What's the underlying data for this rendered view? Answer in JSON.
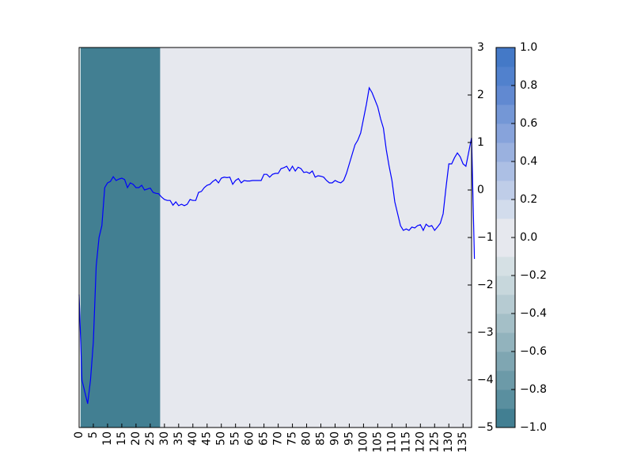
{
  "chart_data": {
    "type": "line",
    "title": "",
    "xlabel": "",
    "ylabel": "",
    "xlim": [
      0,
      138
    ],
    "ylim": [
      -5,
      3
    ],
    "grid": false,
    "legend": "none",
    "x_tick_values": [
      0,
      5,
      10,
      15,
      20,
      25,
      30,
      35,
      40,
      45,
      50,
      55,
      60,
      65,
      70,
      75,
      80,
      85,
      90,
      95,
      100,
      105,
      110,
      115,
      120,
      125,
      130,
      135
    ],
    "x_tick_labels": [
      "0",
      "5",
      "10",
      "15",
      "20",
      "25",
      "30",
      "35",
      "40",
      "45",
      "50",
      "55",
      "60",
      "65",
      "70",
      "75",
      "80",
      "85",
      "90",
      "95",
      "100",
      "105",
      "110",
      "115",
      "120",
      "125",
      "130",
      "135"
    ],
    "y_tick_values": [
      -5,
      -4,
      -3,
      -2,
      -1,
      0,
      1,
      2,
      3
    ],
    "y_tick_labels": [
      "−5",
      "−4",
      "−3",
      "−2",
      "−1",
      "0",
      "1",
      "2",
      "3"
    ],
    "line_color": "#0000ff",
    "background_bands": [
      {
        "x0": 0.5,
        "x1": 28.5,
        "value": -1.0,
        "color": "#427f92"
      },
      {
        "x0": 28.5,
        "x1": 138,
        "value": 0.0,
        "color": "#e6e8ee"
      }
    ],
    "series": [
      {
        "values": [
          -2.2,
          -4.0,
          -4.25,
          -4.5,
          -4.0,
          -3.2,
          -1.6,
          -1.0,
          -0.75,
          0.05,
          0.15,
          0.18,
          0.28,
          0.2,
          0.23,
          0.25,
          0.22,
          0.05,
          0.15,
          0.12,
          0.05,
          0.05,
          0.1,
          0.0,
          0.02,
          0.04,
          -0.05,
          -0.07,
          -0.08,
          -0.15,
          -0.2,
          -0.22,
          -0.22,
          -0.32,
          -0.25,
          -0.33,
          -0.3,
          -0.33,
          -0.3,
          -0.2,
          -0.22,
          -0.22,
          -0.05,
          -0.03,
          0.05,
          0.1,
          0.12,
          0.18,
          0.22,
          0.15,
          0.25,
          0.27,
          0.26,
          0.27,
          0.12,
          0.2,
          0.24,
          0.15,
          0.2,
          0.19,
          0.19,
          0.2,
          0.2,
          0.2,
          0.2,
          0.33,
          0.33,
          0.27,
          0.33,
          0.35,
          0.35,
          0.45,
          0.47,
          0.5,
          0.4,
          0.5,
          0.4,
          0.48,
          0.45,
          0.37,
          0.38,
          0.35,
          0.4,
          0.27,
          0.3,
          0.29,
          0.27,
          0.2,
          0.15,
          0.15,
          0.2,
          0.17,
          0.15,
          0.2,
          0.35,
          0.55,
          0.75,
          0.95,
          1.05,
          1.2,
          1.5,
          1.8,
          2.15,
          2.05,
          1.9,
          1.75,
          1.5,
          1.3,
          0.85,
          0.5,
          0.2,
          -0.25,
          -0.5,
          -0.75,
          -0.85,
          -0.82,
          -0.85,
          -0.78,
          -0.8,
          -0.75,
          -0.73,
          -0.85,
          -0.72,
          -0.77,
          -0.75,
          -0.85,
          -0.78,
          -0.7,
          -0.5,
          0.05,
          0.55,
          0.55,
          0.68,
          0.78,
          0.7,
          0.55,
          0.5,
          0.8,
          1.1,
          -1.45
        ]
      }
    ],
    "colorbar": {
      "range": [
        -1.0,
        1.0
      ],
      "levels": [
        -1.0,
        -0.9,
        -0.8,
        -0.7,
        -0.6,
        -0.5,
        -0.4,
        -0.3,
        -0.2,
        -0.1,
        0.0,
        0.1,
        0.2,
        0.3,
        0.4,
        0.5,
        0.6,
        0.7,
        0.8,
        0.9,
        1.0
      ],
      "colors": [
        "#427f92",
        "#5a8f9f",
        "#6c9aa8",
        "#7fa6b2",
        "#92b3bd",
        "#a4bfc7",
        "#b6cbd2",
        "#c7d7dc",
        "#d5e0e4",
        "#e6e8ee",
        "#e6e8ee",
        "#d2dcec",
        "#bfcde8",
        "#acbfe4",
        "#9ab1df",
        "#87a3db",
        "#7497d6",
        "#6189d1",
        "#5181cd",
        "#4479c7"
      ],
      "tick_values": [
        -1.0,
        -0.8,
        -0.6,
        -0.4,
        -0.2,
        0.0,
        0.2,
        0.4,
        0.6,
        0.8,
        1.0
      ],
      "tick_labels": [
        "−1.0",
        "−0.8",
        "−0.6",
        "−0.4",
        "−0.2",
        "0.0",
        "0.2",
        "0.4",
        "0.6",
        "0.8",
        "1.0"
      ]
    }
  }
}
